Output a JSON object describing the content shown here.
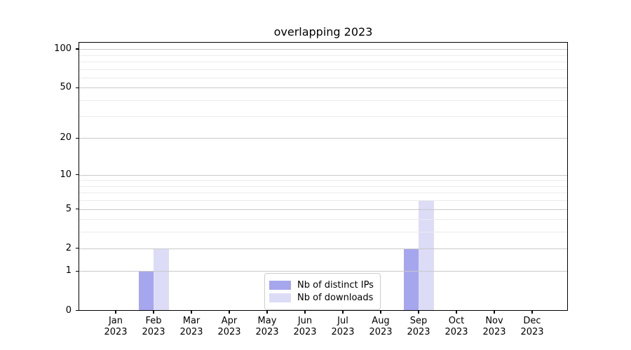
{
  "title": "overlapping 2023",
  "chart_data": {
    "type": "bar",
    "title": "overlapping 2023",
    "categories": [
      "Jan 2023",
      "Feb 2023",
      "Mar 2023",
      "Apr 2023",
      "May 2023",
      "Jun 2023",
      "Jul 2023",
      "Aug 2023",
      "Sep 2023",
      "Oct 2023",
      "Nov 2023",
      "Dec 2023"
    ],
    "series": [
      {
        "name": "Nb of distinct IPs",
        "color": "#a6a6ef",
        "values": [
          0,
          1,
          0,
          0,
          0,
          0,
          0,
          0,
          2,
          0,
          0,
          0
        ]
      },
      {
        "name": "Nb of downloads",
        "color": "#dcdcf7",
        "values": [
          0,
          2,
          0,
          0,
          0,
          0,
          0,
          0,
          6,
          0,
          0,
          0
        ]
      }
    ],
    "yscale": "log1p",
    "ylim": [
      0,
      113
    ],
    "yticks": [
      0,
      1,
      2,
      5,
      10,
      20,
      50,
      100
    ],
    "minor_yticks": [
      3,
      4,
      6,
      7,
      8,
      9,
      30,
      40,
      60,
      70,
      80,
      90
    ],
    "grid": "horizontal",
    "legend_position": "bottom-center",
    "bar_layout": "side-by-side"
  },
  "colors": {
    "grid_major": "#c9c9c9",
    "grid_minor": "#ebebeb",
    "axis": "#000000",
    "background": "#ffffff"
  }
}
